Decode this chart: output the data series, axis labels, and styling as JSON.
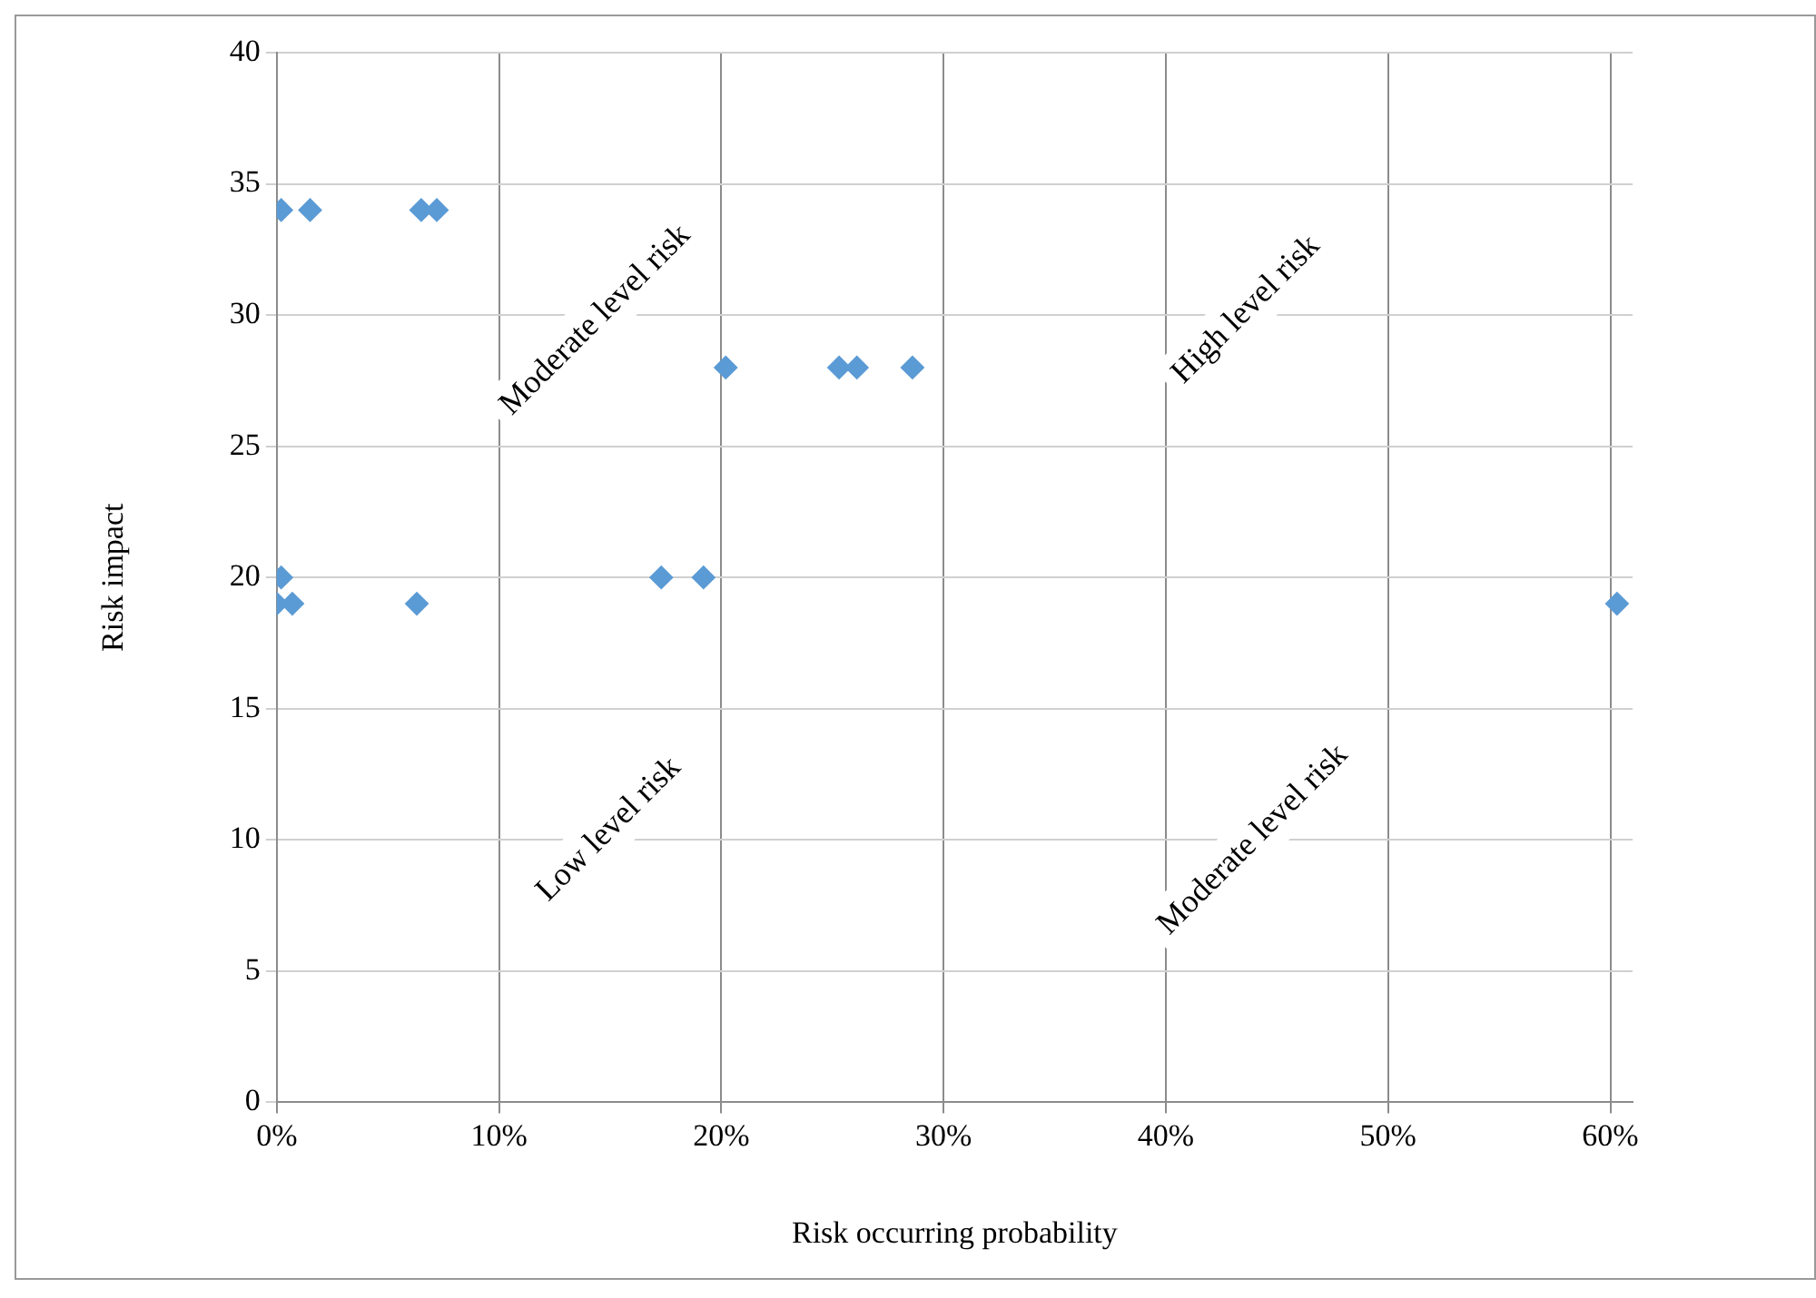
{
  "chart_data": {
    "type": "scatter",
    "xlabel": "Risk occurring probability",
    "ylabel": "Risk impact",
    "x": [
      0.2,
      1.5,
      6.5,
      7.2,
      20.2,
      25.3,
      26.1,
      28.6,
      0.2,
      17.3,
      19.2,
      0,
      0.7,
      6.3,
      60.3
    ],
    "values": [
      34,
      34,
      34,
      34,
      28,
      28,
      28,
      28,
      20,
      20,
      20,
      19,
      19,
      19,
      19
    ],
    "color": "#5b9bd5",
    "marker": "diamond",
    "grid": true,
    "legend": false,
    "xlim": [
      0,
      61
    ],
    "xticks": [
      {
        "value": 0,
        "label": "0%"
      },
      {
        "value": 10,
        "label": "10%"
      },
      {
        "value": 20,
        "label": "20%"
      },
      {
        "value": 30,
        "label": "30%"
      },
      {
        "value": 40,
        "label": "40%"
      },
      {
        "value": 50,
        "label": "50%"
      },
      {
        "value": 60,
        "label": "60%"
      }
    ],
    "ylim": [
      0,
      40
    ],
    "yticks": [
      0,
      5,
      10,
      15,
      20,
      25,
      30,
      35,
      40
    ],
    "annotations": [
      "Moderate level risk",
      "High level risk",
      "Low level risk",
      "Moderate level risk"
    ]
  }
}
